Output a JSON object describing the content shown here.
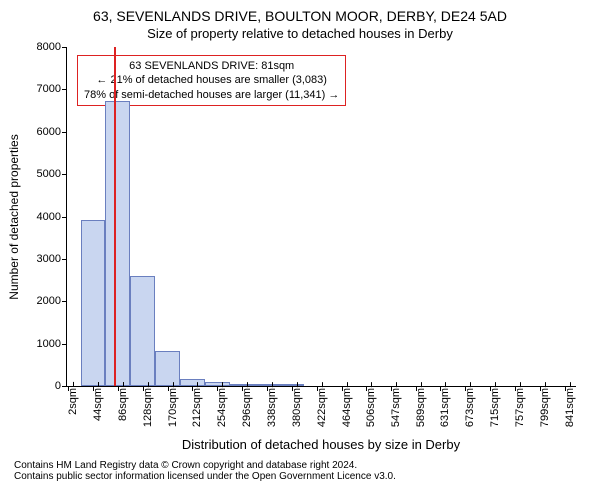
{
  "title": "63, SEVENLANDS DRIVE, BOULTON MOOR, DERBY, DE24 5AD",
  "subtitle": "Size of property relative to detached houses in Derby",
  "ylabel": "Number of detached properties",
  "xlabel": "Distribution of detached houses by size in Derby",
  "footer_line1": "Contains HM Land Registry data © Crown copyright and database right 2024.",
  "footer_line2": "Contains public sector information licensed under the Open Government Licence v3.0.",
  "annotation": {
    "line1": "63 SEVENLANDS DRIVE: 81sqm",
    "line2": "← 21% of detached houses are smaller (3,083)",
    "line3": "78% of semi-detached houses are larger (11,341) →",
    "border_color": "#dd2222",
    "fontsize": 11
  },
  "chart": {
    "type": "histogram",
    "background": "#ffffff",
    "bar_fill": "#c9d6f0",
    "bar_border": "#6a7fbf",
    "marker_value": 81,
    "marker_color": "#dd2222",
    "xmin": 0,
    "xmax": 860,
    "ymin": 0,
    "ymax": 8000,
    "ytick_step": 1000,
    "yticks": [
      0,
      1000,
      2000,
      3000,
      4000,
      5000,
      6000,
      7000,
      8000
    ],
    "xticks": [
      2,
      44,
      86,
      128,
      170,
      212,
      254,
      296,
      338,
      380,
      422,
      464,
      506,
      547,
      589,
      631,
      673,
      715,
      757,
      799,
      841
    ],
    "xtick_labels": [
      "2sqm",
      "44sqm",
      "86sqm",
      "128sqm",
      "170sqm",
      "212sqm",
      "254sqm",
      "296sqm",
      "338sqm",
      "380sqm",
      "422sqm",
      "464sqm",
      "506sqm",
      "547sqm",
      "589sqm",
      "631sqm",
      "673sqm",
      "715sqm",
      "757sqm",
      "799sqm",
      "841sqm"
    ],
    "title_fontsize": 14,
    "subtitle_fontsize": 13,
    "label_fontsize": 12,
    "tick_fontsize": 11,
    "footer_fontsize": 10,
    "bars": [
      {
        "x": 44,
        "v": 3920
      },
      {
        "x": 86,
        "v": 6730
      },
      {
        "x": 128,
        "v": 2600
      },
      {
        "x": 170,
        "v": 830
      },
      {
        "x": 212,
        "v": 170
      },
      {
        "x": 254,
        "v": 90
      },
      {
        "x": 296,
        "v": 50
      },
      {
        "x": 338,
        "v": 35
      },
      {
        "x": 380,
        "v": 20
      }
    ],
    "bar_width_units": 42
  }
}
